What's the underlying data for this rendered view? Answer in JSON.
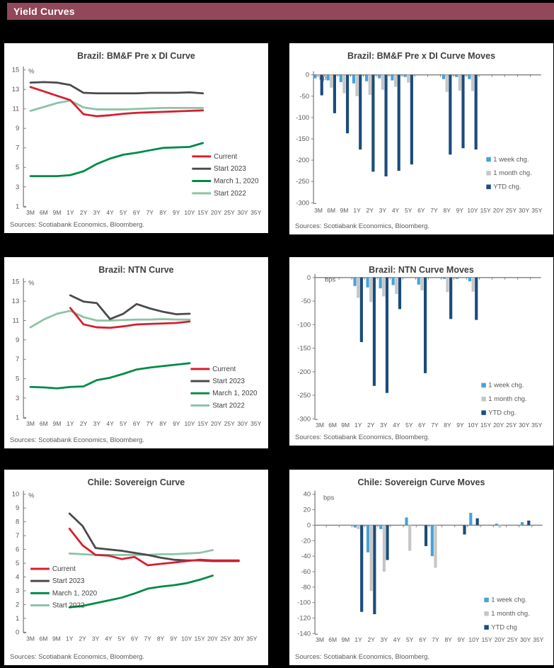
{
  "header": {
    "title": "Yield Curves"
  },
  "colors": {
    "page_bg": "#000000",
    "header_bg": "#92485A",
    "header_text": "#FFFFFF",
    "panel_bg": "#FFFFFF",
    "panel_border": "#000000",
    "title_text": "#404040",
    "axis_text": "#595959",
    "axis_line": "#7F7F7F",
    "current": "#D81E2F",
    "start_2023": "#4A4A4C",
    "march_2020": "#008A47",
    "start_2022": "#8BC4A5",
    "week": "#45A2DC",
    "month": "#C6C6C6",
    "ytd": "#1B4C7C"
  },
  "chart_data": [
    {
      "type": "line",
      "title": "Brazil: BM&F Pre x DI Curve",
      "unit": "%",
      "sources": "Sources: Scotiabank Economics, Bloomberg.",
      "categories": [
        "3M",
        "6M",
        "9M",
        "1Y",
        "2Y",
        "3Y",
        "4Y",
        "5Y",
        "6Y",
        "7Y",
        "8Y",
        "9Y",
        "10Y",
        "15Y",
        "20Y",
        "25Y",
        "30Y",
        "35Y"
      ],
      "y_min": 1,
      "y_max": 15,
      "y_ticks": [
        15,
        13,
        11,
        9,
        7,
        5,
        3,
        1
      ],
      "legend_position": "right-middle",
      "series": [
        {
          "name": "Current",
          "color": "current",
          "values": [
            13.25,
            12.8,
            12.35,
            11.9,
            10.45,
            10.25,
            10.35,
            10.5,
            10.6,
            10.65,
            10.7,
            10.75,
            10.8,
            10.85,
            null,
            null,
            null,
            null
          ]
        },
        {
          "name": "Start 2023",
          "color": "start_2023",
          "values": [
            13.7,
            13.75,
            13.7,
            13.45,
            12.65,
            12.6,
            12.6,
            12.6,
            12.6,
            12.65,
            12.65,
            12.65,
            12.7,
            12.6,
            null,
            null,
            null,
            null
          ]
        },
        {
          "name": "March 1, 2020",
          "color": "march_2020",
          "values": [
            4.1,
            4.1,
            4.1,
            4.2,
            4.6,
            5.35,
            5.9,
            6.3,
            6.5,
            6.75,
            7.0,
            7.05,
            7.1,
            7.5,
            null,
            null,
            null,
            null
          ]
        },
        {
          "name": "Start 2022",
          "color": "start_2022",
          "values": [
            10.8,
            11.2,
            11.6,
            11.85,
            11.15,
            10.95,
            10.95,
            10.95,
            11.0,
            11.05,
            11.1,
            11.1,
            11.1,
            11.1,
            null,
            null,
            null,
            null
          ]
        }
      ]
    },
    {
      "type": "bar",
      "title": "Brazil: BM&F Pre x DI Curve Moves",
      "unit": "bps",
      "sources": "Sources: Scotiabank Economics, Bloomberg.",
      "categories": [
        "3M",
        "6M",
        "9M",
        "1Y",
        "2Y",
        "3Y",
        "4Y",
        "5Y",
        "6Y",
        "7Y",
        "8Y",
        "9Y",
        "10Y",
        "15Y",
        "20Y",
        "25Y",
        "30Y",
        "35Y"
      ],
      "y_min": -300,
      "y_max": 0,
      "y_ticks": [
        0,
        -50,
        -100,
        -150,
        -200,
        -250,
        -300
      ],
      "legend_position": "right-middle",
      "series": [
        {
          "name": "1 week chg.",
          "color": "week",
          "values": [
            -8,
            -13,
            -17,
            -20,
            -15,
            -8,
            -13,
            -5,
            0,
            0,
            -10,
            -5,
            -10,
            0,
            0,
            0,
            0,
            0
          ]
        },
        {
          "name": "1 month chg.",
          "color": "month",
          "values": [
            -5,
            -30,
            -43,
            -50,
            -47,
            -35,
            -28,
            -18,
            0,
            0,
            -40,
            -37,
            -38,
            0,
            0,
            0,
            0,
            0
          ]
        },
        {
          "name": "YTD chg.",
          "color": "ytd",
          "values": [
            -48,
            -90,
            -137,
            -175,
            -227,
            -238,
            -225,
            -210,
            0,
            0,
            -187,
            -172,
            -175,
            0,
            0,
            0,
            0,
            0
          ]
        }
      ]
    },
    {
      "type": "line",
      "title": "Brazil: NTN Curve",
      "unit": "%",
      "sources": "Sources: Scotiabank Economics, Bloomberg.",
      "categories": [
        "3M",
        "6M",
        "9M",
        "1Y",
        "2Y",
        "3Y",
        "4Y",
        "5Y",
        "6Y",
        "7Y",
        "8Y",
        "9Y",
        "10Y",
        "15Y",
        "20Y",
        "25Y",
        "30Y",
        "35Y"
      ],
      "y_min": 1,
      "y_max": 15,
      "y_ticks": [
        15,
        13,
        11,
        9,
        7,
        5,
        3,
        1
      ],
      "legend_position": "right-middle",
      "series": [
        {
          "name": "Current",
          "color": "current",
          "values": [
            null,
            null,
            null,
            12.3,
            10.6,
            10.3,
            10.25,
            10.4,
            10.6,
            10.65,
            10.7,
            10.75,
            10.9,
            null,
            null,
            null,
            null,
            null
          ]
        },
        {
          "name": "Start 2023",
          "color": "start_2023",
          "values": [
            null,
            null,
            null,
            13.6,
            12.95,
            12.8,
            11.15,
            11.7,
            12.7,
            12.25,
            11.9,
            11.65,
            11.7,
            null,
            null,
            null,
            null,
            null
          ]
        },
        {
          "name": "March 1, 2020",
          "color": "march_2020",
          "values": [
            4.15,
            4.1,
            4.0,
            4.15,
            4.2,
            4.85,
            5.1,
            5.5,
            5.95,
            6.15,
            6.3,
            6.45,
            6.6,
            null,
            null,
            null,
            null,
            null
          ]
        },
        {
          "name": "Start 2022",
          "color": "start_2022",
          "values": [
            10.3,
            11.1,
            11.7,
            12.0,
            11.35,
            11.0,
            11.0,
            11.05,
            11.1,
            11.1,
            11.15,
            11.1,
            11.1,
            null,
            null,
            null,
            null,
            null
          ]
        }
      ]
    },
    {
      "type": "bar",
      "title": "Brazil: NTN Curve Moves",
      "unit": "bps",
      "sources": "Sources: Scotiabank Economics, Bloomberg.",
      "categories": [
        "3M",
        "6M",
        "9M",
        "1Y",
        "2Y",
        "3Y",
        "4Y",
        "5Y",
        "6Y",
        "7Y",
        "8Y",
        "9Y",
        "10Y",
        "15Y",
        "20Y",
        "25Y",
        "30Y",
        "35Y"
      ],
      "y_min": -300,
      "y_max": 0,
      "y_ticks": [
        0,
        -50,
        -100,
        -150,
        -200,
        -250,
        -300
      ],
      "legend_position": "right-middle",
      "series": [
        {
          "name": "1 week chg.",
          "color": "week",
          "values": [
            0,
            0,
            0,
            -18,
            -21,
            -23,
            -16,
            0,
            -15,
            0,
            -3,
            -3,
            -8,
            0,
            0,
            0,
            0,
            0
          ]
        },
        {
          "name": "1 month chg.",
          "color": "month",
          "values": [
            0,
            0,
            0,
            -43,
            -52,
            -40,
            -35,
            0,
            -27,
            0,
            -31,
            0,
            -30,
            0,
            0,
            0,
            0,
            0
          ]
        },
        {
          "name": "YTD chg.",
          "color": "ytd",
          "values": [
            0,
            0,
            0,
            -137,
            -230,
            -245,
            -67,
            0,
            -203,
            0,
            -88,
            0,
            -90,
            0,
            0,
            0,
            0,
            0
          ]
        }
      ]
    },
    {
      "type": "line",
      "title": "Chile: Sovereign Curve",
      "unit": "%",
      "sources": "Sources: Scotiabank Economics, Bloomberg.",
      "categories": [
        "3M",
        "6M",
        "9M",
        "1Y",
        "2Y",
        "3Y",
        "4Y",
        "5Y",
        "6Y",
        "7Y",
        "8Y",
        "9Y",
        "10Y",
        "15Y",
        "20Y",
        "25Y",
        "30Y",
        "35Y"
      ],
      "y_min": 0,
      "y_max": 10,
      "y_ticks": [
        10,
        9,
        8,
        7,
        6,
        5,
        4,
        3,
        2,
        1,
        0
      ],
      "legend_position": "bottom-left",
      "series": [
        {
          "name": "Current",
          "color": "current",
          "values": [
            null,
            null,
            null,
            7.5,
            6.3,
            5.6,
            5.55,
            5.3,
            5.45,
            4.85,
            4.95,
            5.05,
            5.15,
            5.25,
            5.2,
            5.2,
            5.2,
            null
          ]
        },
        {
          "name": "Start 2023",
          "color": "start_2023",
          "values": [
            null,
            null,
            null,
            8.6,
            7.7,
            6.1,
            6.0,
            5.9,
            5.75,
            5.6,
            5.4,
            5.25,
            5.2,
            5.2,
            5.15,
            5.15,
            5.15,
            null
          ]
        },
        {
          "name": "March 1, 2020",
          "color": "march_2020",
          "values": [
            null,
            null,
            null,
            1.8,
            1.9,
            2.1,
            2.3,
            2.5,
            2.8,
            3.15,
            3.3,
            3.4,
            3.55,
            3.8,
            4.1,
            null,
            null,
            null
          ]
        },
        {
          "name": "Start 2022",
          "color": "start_2022",
          "values": [
            null,
            null,
            null,
            5.7,
            5.65,
            5.6,
            5.6,
            5.6,
            5.6,
            5.6,
            5.65,
            5.65,
            5.7,
            5.75,
            5.95,
            null,
            null,
            null
          ]
        }
      ]
    },
    {
      "type": "bar",
      "title": "Chile: Sovereign Curve Moves",
      "unit": "bps",
      "sources": "Sources: Scotiabank Economics, Bloomberg.",
      "categories": [
        "3M",
        "6M",
        "9M",
        "1Y",
        "2Y",
        "3Y",
        "4Y",
        "5Y",
        "6Y",
        "7Y",
        "8Y",
        "9Y",
        "10Y",
        "15Y",
        "20Y",
        "25Y",
        "30Y",
        "35Y"
      ],
      "y_min": -140,
      "y_max": 40,
      "y_ticks": [
        40,
        20,
        0,
        -20,
        -40,
        -60,
        -80,
        -100,
        -120,
        -140
      ],
      "legend_position": "right-bottom",
      "series": [
        {
          "name": "1 week chg.",
          "color": "week",
          "values": [
            0,
            0,
            0,
            -3,
            -35,
            -5,
            0,
            10,
            0,
            -40,
            0,
            0,
            16,
            0,
            2,
            0,
            4,
            0
          ]
        },
        {
          "name": "1 month chg.",
          "color": "month",
          "values": [
            0,
            0,
            0,
            -5,
            -85,
            -60,
            0,
            -33,
            0,
            -55,
            0,
            0,
            0,
            0,
            -3,
            0,
            0,
            0
          ]
        },
        {
          "name": "YTD chg",
          "color": "ytd",
          "values": [
            0,
            0,
            0,
            -112,
            -115,
            -45,
            0,
            0,
            -27,
            0,
            0,
            -12,
            9,
            0,
            0,
            0,
            6,
            0
          ]
        }
      ]
    }
  ]
}
